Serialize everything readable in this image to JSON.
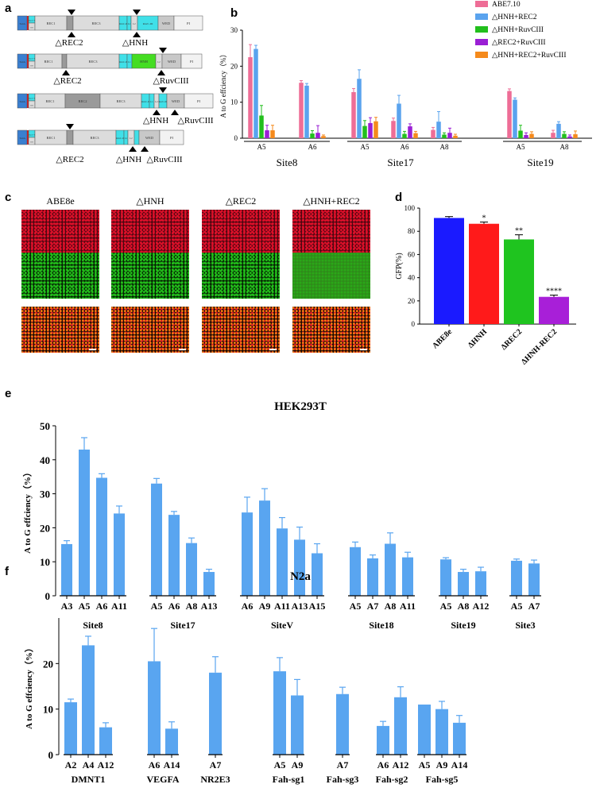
{
  "panel_letters": {
    "a": "a",
    "b": "b",
    "c": "c",
    "d": "d",
    "e": "e",
    "f": "f"
  },
  "panel_a": {
    "colors": {
      "rec": "#dcdcdc",
      "rec_dark": "#9a9a9a",
      "ruvc": "#40e0e8",
      "hnh": "#44dd22",
      "wed": "#c8c8c8",
      "pi": "#f2f2f2",
      "red": "#cc2222",
      "blue": "#3a7fd0"
    },
    "constructs": [
      {
        "deletion_labels": [
          "△REC2",
          "△HNH"
        ]
      },
      {
        "deletion_labels": [
          "△REC2",
          "△RuvCIII"
        ]
      },
      {
        "deletion_labels": [
          "△HNH",
          "△RuvCIII"
        ]
      },
      {
        "deletion_labels": [
          "△REC2",
          "△HNH",
          "△RuvCIII"
        ]
      }
    ],
    "domain_labels": {
      "tada": "TadA",
      "ruvc1": "RuvC-I",
      "bh": "BH",
      "rec1": "REC1",
      "rec2": "REC2",
      "rec3": "REC3",
      "ruvc2": "RuvC-II",
      "l1": "L1",
      "l2": "L2",
      "hnh": "HNH",
      "ruvc3": "RuvC-III",
      "wed": "WED",
      "pi": "PI"
    }
  },
  "panel_c": {
    "columns": [
      "ABE8e",
      "△HNH",
      "△REC2",
      "△HNH+REC2"
    ],
    "colors": {
      "red": "#e0102a",
      "green": "#22c01a",
      "dark": "#1a0a04"
    }
  },
  "chart_data": [
    {
      "panel": "b",
      "type": "bar",
      "xlabel": "",
      "ylabel": "A to G effciency（%）",
      "ylim": [
        0,
        30
      ],
      "yticks": [
        0,
        10,
        20,
        30
      ],
      "legend_position": "top-right",
      "series": [
        {
          "name": "ABE7.10",
          "color": "#ee6d96"
        },
        {
          "name": "△HNH+REC2",
          "color": "#5aa3ee"
        },
        {
          "name": "△HNH+RuvCIII",
          "color": "#22bf1c"
        },
        {
          "name": "△REC2+RuvCIII",
          "color": "#9a1fd4"
        },
        {
          "name": "△HNH+REC2+RuvCIII",
          "color": "#f58a1c"
        }
      ],
      "groups": [
        {
          "site": "Site8",
          "positions": [
            {
              "label": "A5",
              "values": [
                22.5,
                24.8,
                6.3,
                2.2,
                2.2
              ],
              "errors": [
                3.5,
                1.0,
                2.8,
                1.4,
                1.4
              ]
            },
            {
              "label": "A6",
              "values": [
                15.4,
                14.6,
                1.3,
                1.5,
                0.6
              ],
              "errors": [
                0.6,
                0.6,
                0.8,
                2.0,
                0.3
              ]
            }
          ]
        },
        {
          "site": "Site17",
          "positions": [
            {
              "label": "A5",
              "values": [
                12.8,
                16.5,
                3.4,
                4.2,
                4.7
              ],
              "errors": [
                1.0,
                2.5,
                1.5,
                1.5,
                1.1
              ]
            },
            {
              "label": "A6",
              "values": [
                4.8,
                9.6,
                1.2,
                3.3,
                1.4
              ],
              "errors": [
                0.8,
                2.3,
                0.7,
                0.7,
                0.5
              ]
            },
            {
              "label": "A8",
              "values": [
                2.3,
                4.6,
                1.0,
                1.5,
                0.7
              ],
              "errors": [
                0.7,
                2.8,
                0.5,
                1.3,
                0.4
              ]
            }
          ]
        },
        {
          "site": "Site19",
          "positions": [
            {
              "label": "A5",
              "values": [
                13.1,
                10.7,
                2.1,
                0.9,
                1.2
              ],
              "errors": [
                0.6,
                0.5,
                1.5,
                0.6,
                0.6
              ]
            },
            {
              "label": "A8",
              "values": [
                1.5,
                4.0,
                1.2,
                0.5,
                1.1
              ],
              "errors": [
                0.7,
                0.6,
                0.6,
                0.4,
                0.9
              ]
            }
          ]
        }
      ]
    },
    {
      "panel": "d",
      "type": "bar",
      "ylabel": "GFP(%)",
      "ylim": [
        0,
        100
      ],
      "yticks": [
        0,
        20,
        40,
        60,
        80,
        100
      ],
      "categories": [
        "ABE8e",
        "ΔHNH",
        "ΔREC2",
        "ΔHNH-REC2"
      ],
      "values": [
        91.5,
        86.5,
        73.0,
        23.5
      ],
      "errors": [
        1.2,
        1.5,
        4.0,
        1.5
      ],
      "significance": [
        "",
        "*",
        "**",
        "****"
      ],
      "colors": [
        "#1a1aff",
        "#ff1a1a",
        "#1fc41f",
        "#a81fd8"
      ]
    },
    {
      "panel": "e",
      "type": "bar",
      "title": "HEK293T",
      "ylabel": "A to G effciency（%）",
      "ylim": [
        0,
        50
      ],
      "yticks": [
        0,
        10,
        20,
        30,
        40,
        50
      ],
      "color": "#59a5f0",
      "groups": [
        {
          "site": "Site8",
          "labels": [
            "A3",
            "A5",
            "A6",
            "A11"
          ],
          "values": [
            15.2,
            43.0,
            34.7,
            24.2
          ],
          "errors": [
            1.0,
            3.5,
            1.2,
            2.2
          ]
        },
        {
          "site": "Site17",
          "labels": [
            "A5",
            "A6",
            "A8",
            "A13"
          ],
          "values": [
            33.0,
            23.8,
            15.5,
            7.0
          ],
          "errors": [
            1.5,
            1.0,
            1.5,
            0.8
          ]
        },
        {
          "site": "SiteV",
          "labels": [
            "A6",
            "A9",
            "A11",
            "A13",
            "A15"
          ],
          "values": [
            24.5,
            28.0,
            19.8,
            16.5,
            12.5
          ],
          "errors": [
            4.5,
            3.5,
            3.2,
            3.7,
            2.8
          ]
        },
        {
          "site": "Site18",
          "labels": [
            "A5",
            "A7",
            "A8",
            "A11"
          ],
          "values": [
            14.3,
            11.0,
            15.3,
            11.3
          ],
          "errors": [
            1.5,
            1.0,
            3.2,
            1.5
          ]
        },
        {
          "site": "Site19",
          "labels": [
            "A5",
            "A8",
            "A12"
          ],
          "values": [
            10.7,
            7.0,
            7.2
          ],
          "errors": [
            0.5,
            0.8,
            1.2
          ]
        },
        {
          "site": "Site3",
          "labels": [
            "A5",
            "A7"
          ],
          "values": [
            10.3,
            9.5
          ],
          "errors": [
            0.5,
            1.0
          ]
        }
      ]
    },
    {
      "panel": "f",
      "type": "bar",
      "title": "N2a",
      "ylabel": "A to G effciency（%）",
      "ylim": [
        0,
        30
      ],
      "yticks": [
        0,
        10,
        20
      ],
      "color": "#59a5f0",
      "groups": [
        {
          "site": "DMNT1",
          "labels": [
            "A2",
            "A4",
            "A12"
          ],
          "values": [
            11.5,
            24.0,
            6.0
          ],
          "errors": [
            0.7,
            2.0,
            1.0
          ]
        },
        {
          "site": "VEGFA",
          "labels": [
            "A6",
            "A14"
          ],
          "values": [
            20.5,
            5.7
          ],
          "errors": [
            7.2,
            1.5
          ]
        },
        {
          "site": "NR2E3",
          "labels": [
            "A7"
          ],
          "values": [
            18.0
          ],
          "errors": [
            3.5
          ]
        },
        {
          "site": "Fah-sg1",
          "labels": [
            "A5",
            "A9"
          ],
          "values": [
            18.3,
            13.0
          ],
          "errors": [
            3.0,
            3.5
          ]
        },
        {
          "site": "Fah-sg3",
          "labels": [
            "A7"
          ],
          "values": [
            13.3
          ],
          "errors": [
            1.5
          ]
        },
        {
          "site": "Fah-sg2",
          "labels": [
            "A6",
            "A12"
          ],
          "values": [
            6.3,
            12.6
          ],
          "errors": [
            1.0,
            2.3
          ]
        },
        {
          "site": "Fah-sg5",
          "labels": [
            "A5",
            "A9",
            "A14"
          ],
          "values": [
            11.0,
            10.0,
            7.0
          ],
          "errors": [
            0.0,
            1.7,
            1.6
          ]
        }
      ]
    }
  ]
}
